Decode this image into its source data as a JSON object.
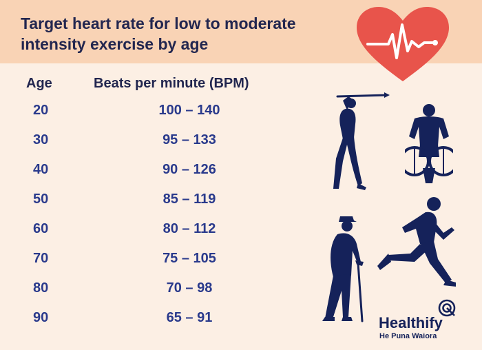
{
  "header": {
    "title": "Target heart rate for low to moderate intensity exercise by age"
  },
  "table": {
    "headers": {
      "age": "Age",
      "bpm": "Beats per minute (BPM)"
    },
    "rows": [
      {
        "age": "20",
        "bpm": "100 – 140"
      },
      {
        "age": "30",
        "bpm": "95 – 133"
      },
      {
        "age": "40",
        "bpm": "90 – 126"
      },
      {
        "age": "50",
        "bpm": "85 – 119"
      },
      {
        "age": "60",
        "bpm": "80 – 112"
      },
      {
        "age": "70",
        "bpm": "75 – 105"
      },
      {
        "age": "80",
        "bpm": "70 – 98"
      },
      {
        "age": "90",
        "bpm": "65 – 91"
      }
    ]
  },
  "logo": {
    "brand": "Healthify",
    "tagline": "He Puna Waiora"
  },
  "colors": {
    "background": "#fcefe4",
    "banner": "#f9d3b5",
    "heart": "#e8544b",
    "title_text": "#22264f",
    "value_text": "#2a3a8c",
    "figures": "#15225a"
  },
  "icons": [
    "heart-pulse-icon",
    "golfer-icon",
    "wheelchair-athlete-icon",
    "elderly-walker-icon",
    "runner-icon",
    "healthify-logo-icon"
  ]
}
